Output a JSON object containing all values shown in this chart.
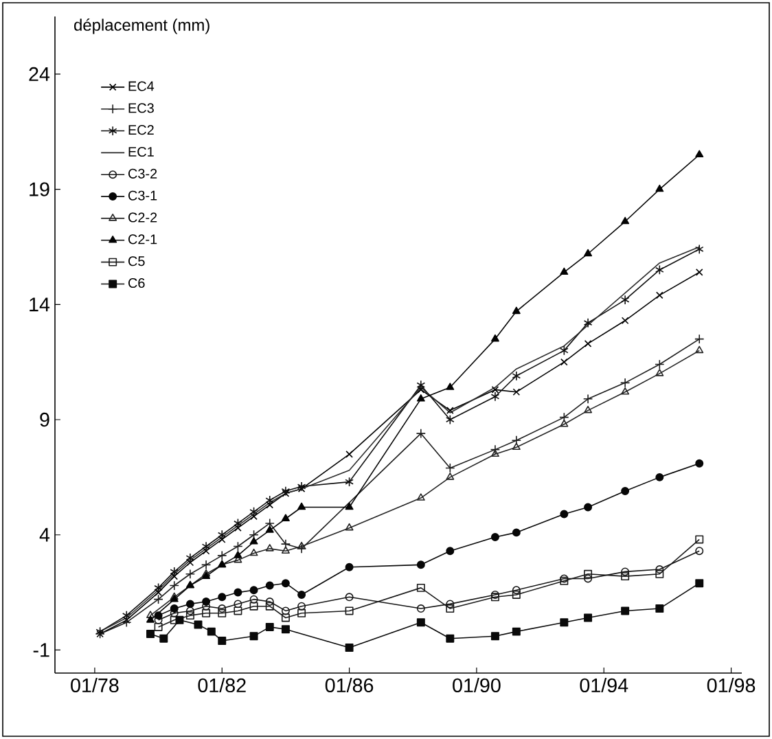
{
  "chart_data": {
    "type": "line",
    "ylabel": "déplacement (mm)",
    "xlim": [
      "1976-10",
      "1998-05"
    ],
    "ylim": [
      -2,
      26.5
    ],
    "xticks": [
      {
        "value": "1978-01",
        "label": "01/78"
      },
      {
        "value": "1982-01",
        "label": "01/82"
      },
      {
        "value": "1986-01",
        "label": "01/86"
      },
      {
        "value": "1990-01",
        "label": "01/90"
      },
      {
        "value": "1994-01",
        "label": "01/94"
      },
      {
        "value": "1998-01",
        "label": "01/98"
      }
    ],
    "yticks": [
      -1,
      4,
      9,
      14,
      19,
      24
    ],
    "legend": "top left",
    "grid": false,
    "series": [
      {
        "name": "EC4",
        "color": "#000000",
        "marker": "cross",
        "x": [
          "1978-03",
          "1979-01",
          "1980-01",
          "1980-07",
          "1981-01",
          "1981-07",
          "1982-01",
          "1982-07",
          "1983-01",
          "1983-07",
          "1984-01",
          "1984-07",
          "1986-01",
          "1988-04",
          "1989-03",
          "1990-08",
          "1991-04",
          "1992-10",
          "1993-07",
          "1994-09",
          "1995-10",
          "1997-01"
        ],
        "values": [
          -0.3,
          0.3,
          1.5,
          2.2,
          2.8,
          3.3,
          3.8,
          4.3,
          4.8,
          5.3,
          5.8,
          6.0,
          7.5,
          10.3,
          9.4,
          10.3,
          10.2,
          11.5,
          12.3,
          13.3,
          14.4,
          15.4
        ]
      },
      {
        "name": "EC3",
        "color": "#1c1c1c",
        "marker": "plus",
        "x": [
          "1978-03",
          "1979-01",
          "1980-01",
          "1980-07",
          "1981-01",
          "1981-07",
          "1982-01",
          "1982-07",
          "1983-01",
          "1983-07",
          "1984-01",
          "1984-07",
          "1988-04",
          "1989-03",
          "1990-08",
          "1991-04",
          "1992-10",
          "1993-07",
          "1994-09",
          "1995-10",
          "1997-01"
        ],
        "values": [
          -0.3,
          0.2,
          1.2,
          1.8,
          2.3,
          2.7,
          3.1,
          3.5,
          4.0,
          4.5,
          3.6,
          3.4,
          8.4,
          6.9,
          7.7,
          8.1,
          9.1,
          9.9,
          10.6,
          11.4,
          12.5
        ]
      },
      {
        "name": "EC2",
        "color": "#0e0e0e",
        "marker": "cross",
        "x": [
          "1978-03",
          "1979-01",
          "1980-01",
          "1980-07",
          "1981-01",
          "1981-07",
          "1982-01",
          "1982-07",
          "1983-01",
          "1983-07",
          "1984-01",
          "1984-07",
          "1986-01",
          "1988-04",
          "1989-03",
          "1990-08",
          "1991-04",
          "1992-10",
          "1993-07",
          "1994-09",
          "1995-10",
          "1997-01"
        ],
        "values": [
          -0.2,
          0.5,
          1.7,
          2.4,
          3.0,
          3.5,
          4.0,
          4.5,
          5.0,
          5.5,
          5.9,
          6.1,
          6.3,
          10.5,
          9.0,
          10.0,
          10.9,
          12.0,
          13.2,
          14.2,
          15.5,
          16.4
        ]
      },
      {
        "name": "EC1",
        "color": "#2a2a2a",
        "marker": "none",
        "x": [
          "1978-03",
          "1979-01",
          "1980-01",
          "1980-07",
          "1981-01",
          "1981-07",
          "1982-01",
          "1982-07",
          "1983-01",
          "1983-07",
          "1984-01",
          "1984-07",
          "1986-01",
          "1988-04",
          "1989-03",
          "1990-08",
          "1991-04",
          "1992-10",
          "1993-07",
          "1994-09",
          "1995-10",
          "1997-01"
        ],
        "values": [
          -0.2,
          0.4,
          1.6,
          2.3,
          2.9,
          3.4,
          3.9,
          4.4,
          4.9,
          5.4,
          5.8,
          6.0,
          6.8,
          10.4,
          9.3,
          10.4,
          11.2,
          12.2,
          13.1,
          14.5,
          15.8,
          16.5
        ]
      },
      {
        "name": "C3-2",
        "color": "#151515",
        "marker": "circle",
        "x": [
          "1980-01",
          "1980-07",
          "1981-01",
          "1981-07",
          "1982-01",
          "1982-07",
          "1983-01",
          "1983-07",
          "1984-01",
          "1984-07",
          "1986-01",
          "1988-04",
          "1989-03",
          "1990-08",
          "1991-04",
          "1992-10",
          "1993-07",
          "1994-09",
          "1995-10",
          "1997-01"
        ],
        "values": [
          0.3,
          0.6,
          0.7,
          0.9,
          0.8,
          1.0,
          1.2,
          1.1,
          0.7,
          0.9,
          1.3,
          0.8,
          1.0,
          1.4,
          1.6,
          2.1,
          2.1,
          2.4,
          2.5,
          3.3
        ]
      },
      {
        "name": "C3-1",
        "color": "#070707",
        "marker": "circle",
        "x": [
          "1980-01",
          "1980-07",
          "1981-01",
          "1981-07",
          "1982-01",
          "1982-07",
          "1983-01",
          "1983-07",
          "1984-01",
          "1984-07",
          "1986-01",
          "1988-04",
          "1989-03",
          "1990-08",
          "1991-04",
          "1992-10",
          "1993-07",
          "1994-09",
          "1995-10",
          "1997-01"
        ],
        "values": [
          0.5,
          0.8,
          1.0,
          1.1,
          1.3,
          1.5,
          1.6,
          1.8,
          1.9,
          1.4,
          2.6,
          2.7,
          3.3,
          3.9,
          4.1,
          4.9,
          5.2,
          5.9,
          6.5,
          7.1
        ]
      },
      {
        "name": "C2-2",
        "color": "#232323",
        "marker": "triangle",
        "x": [
          "1979-10",
          "1980-07",
          "1981-01",
          "1981-07",
          "1982-01",
          "1982-07",
          "1983-01",
          "1983-07",
          "1984-01",
          "1984-07",
          "1986-01",
          "1988-04",
          "1989-03",
          "1990-08",
          "1991-04",
          "1992-10",
          "1993-07",
          "1994-09",
          "1995-10",
          "1997-01"
        ],
        "values": [
          0.5,
          1.3,
          1.8,
          2.3,
          2.7,
          2.9,
          3.2,
          3.4,
          3.3,
          3.5,
          4.3,
          5.6,
          6.5,
          7.5,
          7.8,
          8.8,
          9.4,
          10.2,
          11.0,
          12.0
        ]
      },
      {
        "name": "C2-1",
        "color": "#030303",
        "marker": "triangle",
        "x": [
          "1979-10",
          "1980-07",
          "1981-01",
          "1981-07",
          "1982-01",
          "1982-07",
          "1983-01",
          "1983-07",
          "1984-01",
          "1984-07",
          "1986-01",
          "1988-04",
          "1989-03",
          "1990-08",
          "1991-04",
          "1992-10",
          "1993-07",
          "1994-09",
          "1995-10",
          "1997-01"
        ],
        "values": [
          0.3,
          1.2,
          1.8,
          2.2,
          2.7,
          3.1,
          3.7,
          4.2,
          4.7,
          5.2,
          5.2,
          9.9,
          10.4,
          12.5,
          13.7,
          15.4,
          16.2,
          17.6,
          19.0,
          20.5
        ]
      },
      {
        "name": "C5",
        "color": "#191919",
        "marker": "square",
        "x": [
          "1980-01",
          "1980-07",
          "1981-01",
          "1981-07",
          "1982-01",
          "1982-07",
          "1983-01",
          "1983-07",
          "1984-01",
          "1984-07",
          "1986-01",
          "1988-04",
          "1989-03",
          "1990-08",
          "1991-04",
          "1992-10",
          "1993-07",
          "1994-09",
          "1995-10",
          "1997-01"
        ],
        "values": [
          0.0,
          0.3,
          0.5,
          0.6,
          0.6,
          0.7,
          0.9,
          0.9,
          0.4,
          0.6,
          0.7,
          1.7,
          0.8,
          1.3,
          1.4,
          2.0,
          2.3,
          2.2,
          2.3,
          3.8
        ]
      },
      {
        "name": "C6",
        "color": "#0a0a0a",
        "marker": "square",
        "x": [
          "1979-10",
          "1980-03",
          "1980-09",
          "1981-04",
          "1981-09",
          "1982-01",
          "1983-01",
          "1983-07",
          "1984-01",
          "1986-01",
          "1988-04",
          "1989-03",
          "1990-08",
          "1991-04",
          "1992-10",
          "1993-07",
          "1994-09",
          "1995-10",
          "1997-01"
        ],
        "values": [
          -0.3,
          -0.5,
          0.3,
          0.1,
          -0.2,
          -0.6,
          -0.4,
          0.0,
          -0.1,
          -0.9,
          0.2,
          -0.5,
          -0.4,
          -0.2,
          0.2,
          0.4,
          0.7,
          0.8,
          1.9
        ]
      }
    ]
  }
}
